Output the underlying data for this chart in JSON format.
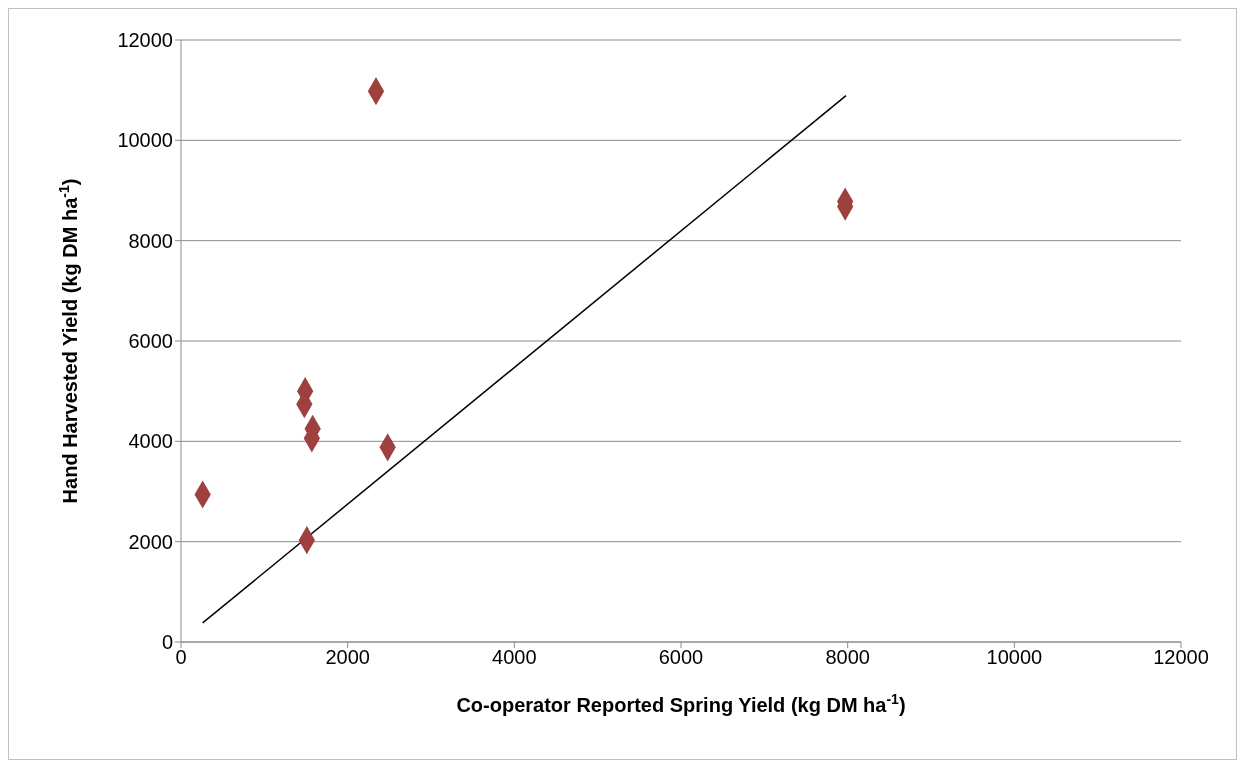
{
  "chart_data": {
    "type": "scatter",
    "xlabel": "Co-operator Reported Spring Yield (kg DM ha$^{-1}$)",
    "ylabel": "Hand Harvested Yield (kg DM ha$^{-1}$)",
    "xlim": [
      0,
      12000
    ],
    "xticks": [
      0,
      2000,
      4000,
      6000,
      8000,
      10000,
      12000
    ],
    "ylim": [
      0,
      12000
    ],
    "yticks": [
      0,
      2000,
      4000,
      6000,
      8000,
      10000,
      12000
    ],
    "grid": "y",
    "marker": "diamond",
    "series": [
      {
        "color": "#9e413e",
        "x": [
          260,
          1490,
          1480,
          1580,
          1570,
          1510,
          2480,
          2340,
          7970,
          7970
        ],
        "values": [
          2940,
          5000,
          4740,
          4250,
          4060,
          2030,
          3880,
          10980,
          8780,
          8680
        ]
      },
      {
        "type": "line",
        "marker": "none",
        "color": "#000000",
        "x": [
          260,
          7980
        ],
        "values": [
          380,
          10890
        ]
      }
    ]
  }
}
